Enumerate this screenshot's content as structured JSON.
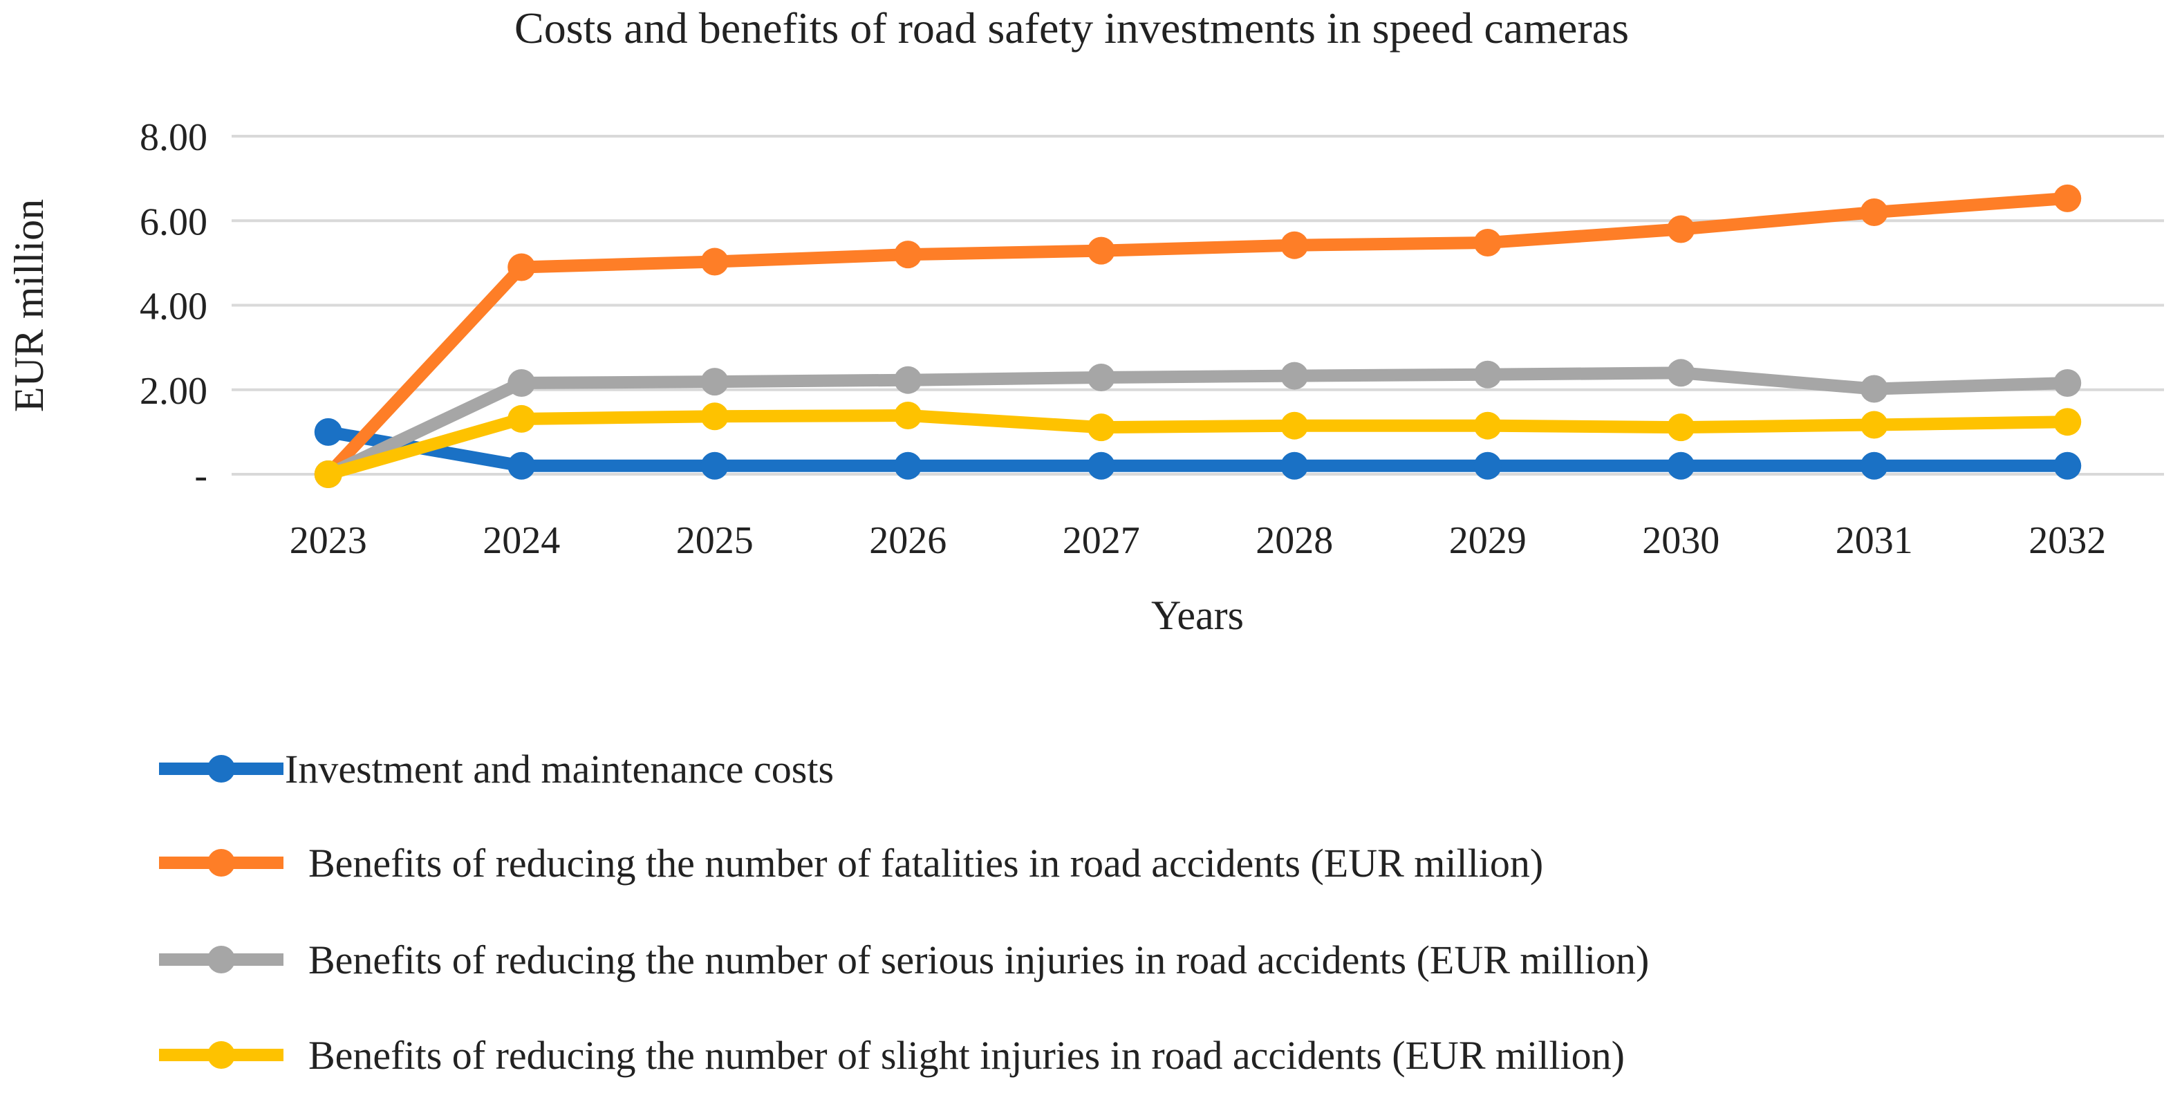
{
  "chart_data": {
    "type": "line",
    "title": "Costs and benefits of road safety investments in speed cameras",
    "xlabel": "Years",
    "ylabel": "EUR million",
    "ylim": [
      0,
      8
    ],
    "yticks": [
      0,
      2,
      4,
      6,
      8
    ],
    "ytick_labels": [
      "-",
      "2.00",
      "4.00",
      "6.00",
      "8.00"
    ],
    "grid": true,
    "legend_position": "bottom",
    "categories": [
      "2023",
      "2024",
      "2025",
      "2026",
      "2027",
      "2028",
      "2029",
      "2030",
      "2031",
      "2032"
    ],
    "series": [
      {
        "name": "Investment and maintenance costs",
        "color": "#1a71c5",
        "values": [
          1.0,
          0.2,
          0.2,
          0.2,
          0.2,
          0.2,
          0.2,
          0.2,
          0.2,
          0.2
        ]
      },
      {
        "name": "Benefits of reducing the number of fatalities in road accidents (EUR million)",
        "color": "#fe7e27",
        "values": [
          0,
          4.9,
          5.03,
          5.2,
          5.29,
          5.42,
          5.48,
          5.8,
          6.2,
          6.53
        ]
      },
      {
        "name": "Benefits of reducing the number of serious injuries in road accidents (EUR million)",
        "color": "#a6a6a6",
        "values": [
          0,
          2.16,
          2.19,
          2.23,
          2.29,
          2.33,
          2.36,
          2.4,
          2.02,
          2.16
        ]
      },
      {
        "name": "Benefits of reducing the number of slight injuries in road accidents (EUR million)",
        "color": "#fec200",
        "values": [
          0,
          1.31,
          1.37,
          1.39,
          1.11,
          1.15,
          1.15,
          1.11,
          1.17,
          1.24
        ]
      }
    ]
  }
}
